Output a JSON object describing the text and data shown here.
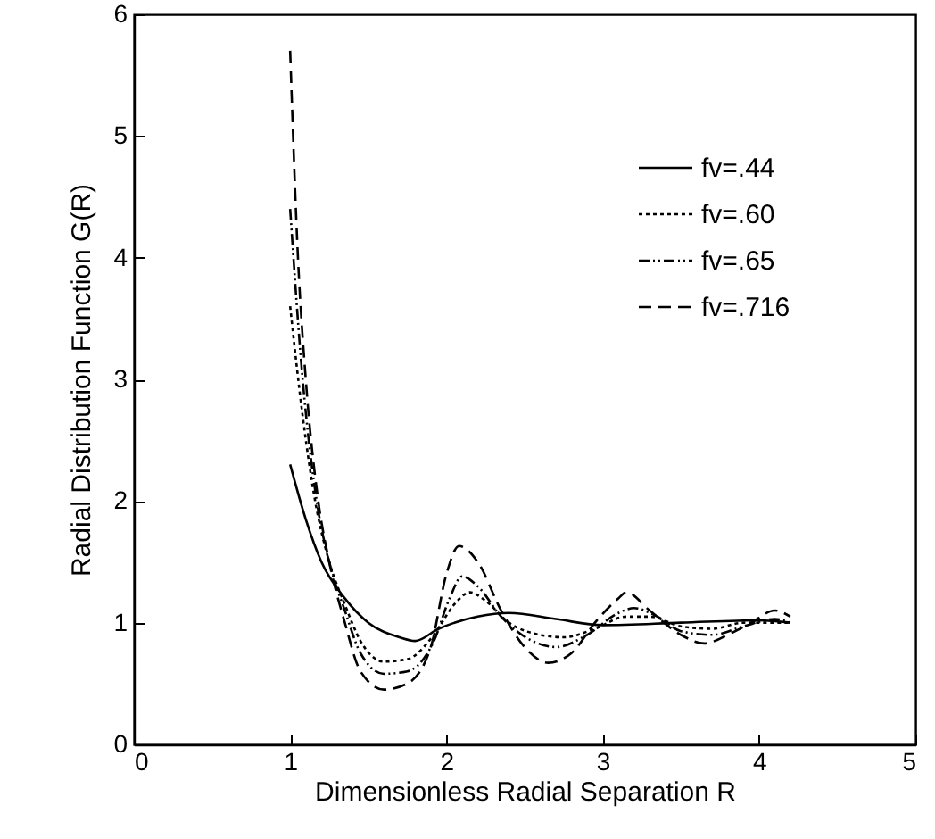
{
  "chart_data": {
    "type": "line",
    "xlabel": "Dimensionless Radial Separation R",
    "ylabel": "Radial Distribution Function G(R)",
    "xlim": [
      0,
      5
    ],
    "xticks": [
      0,
      1,
      2,
      3,
      4,
      5
    ],
    "ylim": [
      0,
      6
    ],
    "yticks": [
      0,
      1,
      2,
      3,
      4,
      5,
      6
    ],
    "grid": false,
    "legend": "top right",
    "series": [
      {
        "name": "fv=.44",
        "color": "#000000",
        "line_style": "solid",
        "x": [
          1.0,
          1.1,
          1.2,
          1.35,
          1.5,
          1.7,
          1.8,
          1.95,
          2.2,
          2.4,
          2.7,
          3.0,
          3.5,
          4.0,
          4.2
        ],
        "values": [
          2.3,
          1.85,
          1.5,
          1.2,
          1.0,
          0.88,
          0.85,
          0.95,
          1.05,
          1.08,
          1.03,
          0.98,
          1.0,
          1.02,
          1.0
        ]
      },
      {
        "name": "fv=.60",
        "color": "#000000",
        "line_style": "dotted",
        "x": [
          1.0,
          1.08,
          1.16,
          1.25,
          1.35,
          1.45,
          1.6,
          1.75,
          1.92,
          2.05,
          2.15,
          2.25,
          2.4,
          2.6,
          2.75,
          2.95,
          3.15,
          3.3,
          3.5,
          3.7,
          3.9,
          4.2
        ],
        "values": [
          3.6,
          2.7,
          2.0,
          1.5,
          1.15,
          0.85,
          0.68,
          0.7,
          0.9,
          1.15,
          1.25,
          1.18,
          1.0,
          0.9,
          0.88,
          0.95,
          1.05,
          1.05,
          0.97,
          0.95,
          1.0,
          1.0
        ]
      },
      {
        "name": "fv=.65",
        "color": "#000000",
        "line_style": "dashdot",
        "x": [
          1.0,
          1.08,
          1.17,
          1.25,
          1.35,
          1.45,
          1.6,
          1.75,
          1.92,
          2.02,
          2.1,
          2.2,
          2.35,
          2.55,
          2.7,
          2.9,
          3.1,
          3.2,
          3.35,
          3.5,
          3.7,
          3.9,
          4.1,
          4.2
        ],
        "values": [
          4.4,
          3.0,
          2.0,
          1.5,
          1.1,
          0.75,
          0.58,
          0.6,
          0.85,
          1.2,
          1.38,
          1.3,
          1.05,
          0.85,
          0.8,
          0.9,
          1.08,
          1.12,
          1.05,
          0.93,
          0.9,
          0.97,
          1.03,
          1.0
        ]
      },
      {
        "name": "fv=.716",
        "color": "#000000",
        "line_style": "dashed",
        "x": [
          1.0,
          1.05,
          1.1,
          1.18,
          1.25,
          1.35,
          1.45,
          1.6,
          1.75,
          1.9,
          2.0,
          2.08,
          2.2,
          2.35,
          2.5,
          2.65,
          2.8,
          2.95,
          3.1,
          3.15,
          3.3,
          3.5,
          3.65,
          3.8,
          3.95,
          4.1,
          4.2
        ],
        "values": [
          5.7,
          4.0,
          3.0,
          2.0,
          1.5,
          1.0,
          0.6,
          0.45,
          0.5,
          0.8,
          1.4,
          1.63,
          1.5,
          1.1,
          0.8,
          0.67,
          0.75,
          1.0,
          1.2,
          1.25,
          1.1,
          0.9,
          0.83,
          0.9,
          1.0,
          1.1,
          1.05
        ]
      }
    ]
  }
}
